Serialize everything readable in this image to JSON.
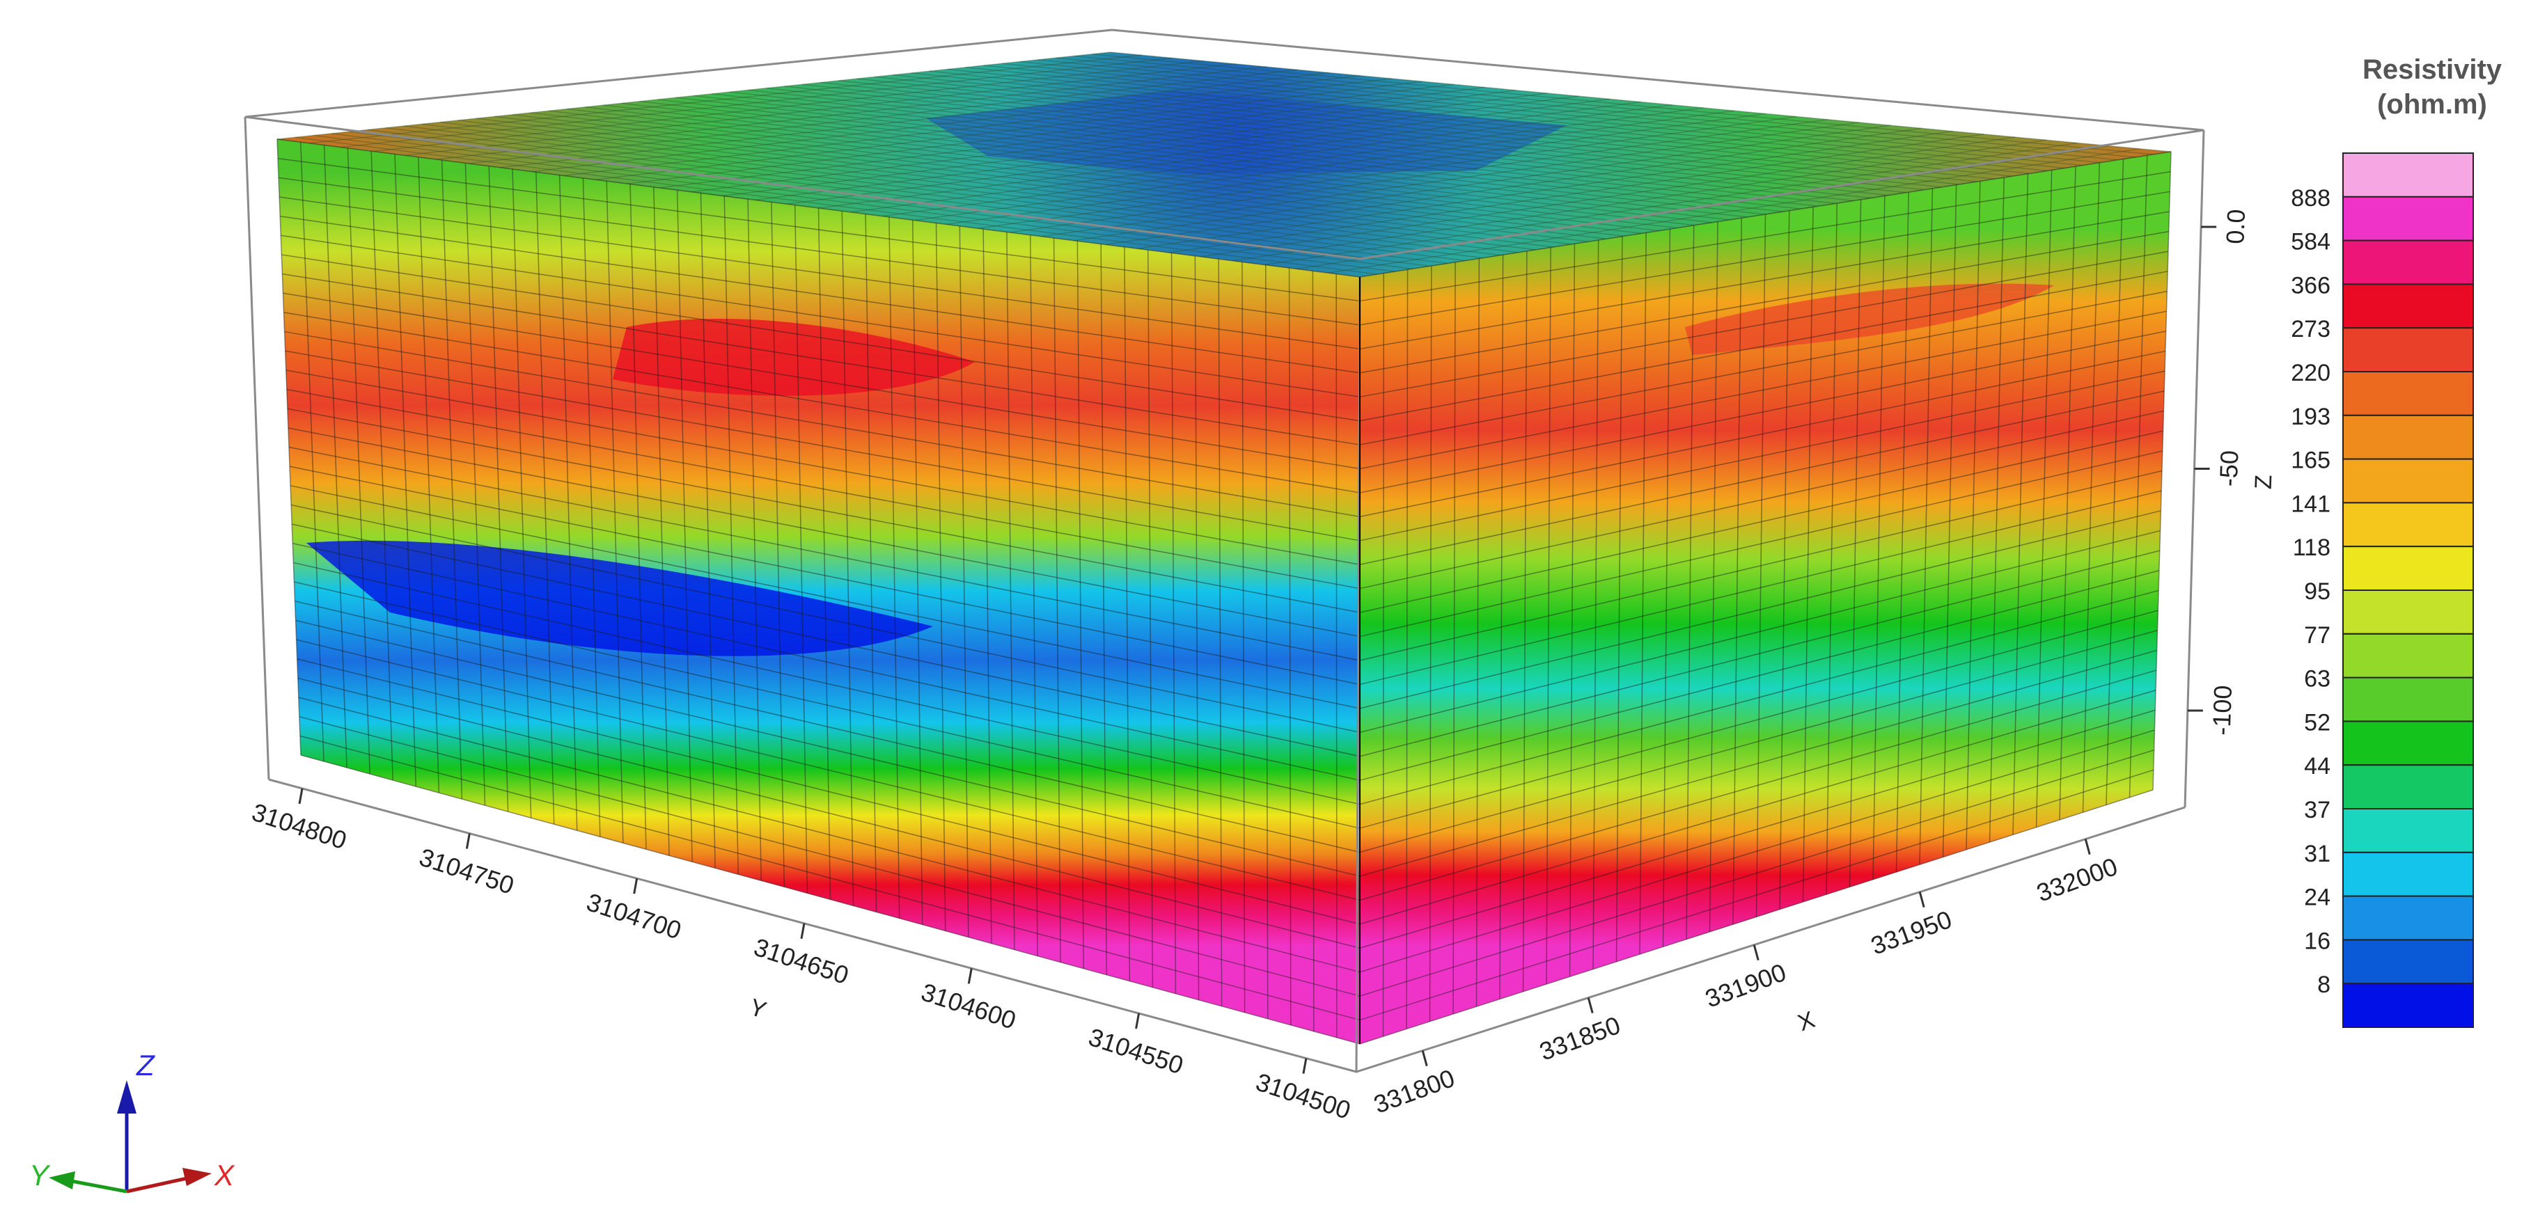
{
  "chart_data": {
    "type": "3d-block-model",
    "title": "",
    "legend": {
      "title_line1": "Resistivity",
      "title_line2": "(ohm.m)",
      "placement": "right",
      "labels": [
        "888",
        "584",
        "366",
        "273",
        "220",
        "193",
        "165",
        "141",
        "118",
        "95",
        "77",
        "63",
        "52",
        "44",
        "37",
        "31",
        "24",
        "16",
        "8"
      ],
      "colors": [
        "#f7a6e4",
        "#f033c8",
        "#ee1578",
        "#ea0a24",
        "#e9402a",
        "#ec6a20",
        "#ef8a1c",
        "#f3a51c",
        "#f5c61c",
        "#eee61c",
        "#c4e22a",
        "#93d92a",
        "#58cc2a",
        "#14c41c",
        "#14c864",
        "#1ad6be",
        "#14c4ea",
        "#1890e6",
        "#0a5ad8",
        "#0010e6"
      ]
    },
    "axes": {
      "y": {
        "label": "Y",
        "ticks": [
          "3104800",
          "3104750",
          "3104700",
          "3104650",
          "3104600",
          "3104550",
          "3104500"
        ],
        "range": [
          3104485,
          3104810
        ]
      },
      "x": {
        "label": "X",
        "ticks": [
          "331800",
          "331850",
          "331900",
          "331950",
          "332000"
        ],
        "range": [
          331780,
          332030
        ]
      },
      "z": {
        "label": "Z",
        "ticks": [
          "0.0",
          "-50",
          "-100"
        ],
        "range": [
          -120,
          20
        ]
      }
    },
    "triad": {
      "x_label": "X",
      "y_label": "Y",
      "z_label": "Z"
    },
    "grid": true,
    "front_face_y_profile": [
      {
        "depth_fraction": 0.0,
        "color": "#4cc52a"
      },
      {
        "depth_fraction": 0.1,
        "color": "#c7e02a"
      },
      {
        "depth_fraction": 0.22,
        "color": "#ec6a20"
      },
      {
        "depth_fraction": 0.3,
        "color": "#e9402a"
      },
      {
        "depth_fraction": 0.4,
        "color": "#f3a51c"
      },
      {
        "depth_fraction": 0.47,
        "color": "#93d92a"
      },
      {
        "depth_fraction": 0.54,
        "color": "#14c4ea"
      },
      {
        "depth_fraction": 0.63,
        "color": "#1b6fe0"
      },
      {
        "depth_fraction": 0.71,
        "color": "#14c4ea"
      },
      {
        "depth_fraction": 0.77,
        "color": "#14c41c"
      },
      {
        "depth_fraction": 0.83,
        "color": "#eee61c"
      },
      {
        "depth_fraction": 0.88,
        "color": "#ef8a1c"
      },
      {
        "depth_fraction": 0.92,
        "color": "#ea0a24"
      },
      {
        "depth_fraction": 0.96,
        "color": "#ee1578"
      },
      {
        "depth_fraction": 1.0,
        "color": "#f033c8"
      }
    ],
    "right_face_x_profile": [
      {
        "depth_fraction": 0.0,
        "color": "#58cc2a"
      },
      {
        "depth_fraction": 0.1,
        "color": "#f3a51c"
      },
      {
        "depth_fraction": 0.2,
        "color": "#ec6a20"
      },
      {
        "depth_fraction": 0.28,
        "color": "#e9402a"
      },
      {
        "depth_fraction": 0.38,
        "color": "#f3a51c"
      },
      {
        "depth_fraction": 0.46,
        "color": "#93d92a"
      },
      {
        "depth_fraction": 0.55,
        "color": "#14c41c"
      },
      {
        "depth_fraction": 0.64,
        "color": "#1ad6be"
      },
      {
        "depth_fraction": 0.71,
        "color": "#58cc2a"
      },
      {
        "depth_fraction": 0.78,
        "color": "#c4e22a"
      },
      {
        "depth_fraction": 0.84,
        "color": "#f3a51c"
      },
      {
        "depth_fraction": 0.9,
        "color": "#ea0a24"
      },
      {
        "depth_fraction": 0.95,
        "color": "#ee1578"
      },
      {
        "depth_fraction": 1.0,
        "color": "#f033c8"
      }
    ],
    "top_face_colors": {
      "edge": "#3fb84a",
      "mid": "#2aa8a0",
      "center": "#1a4fc4",
      "corner": "#d86a1c"
    }
  }
}
